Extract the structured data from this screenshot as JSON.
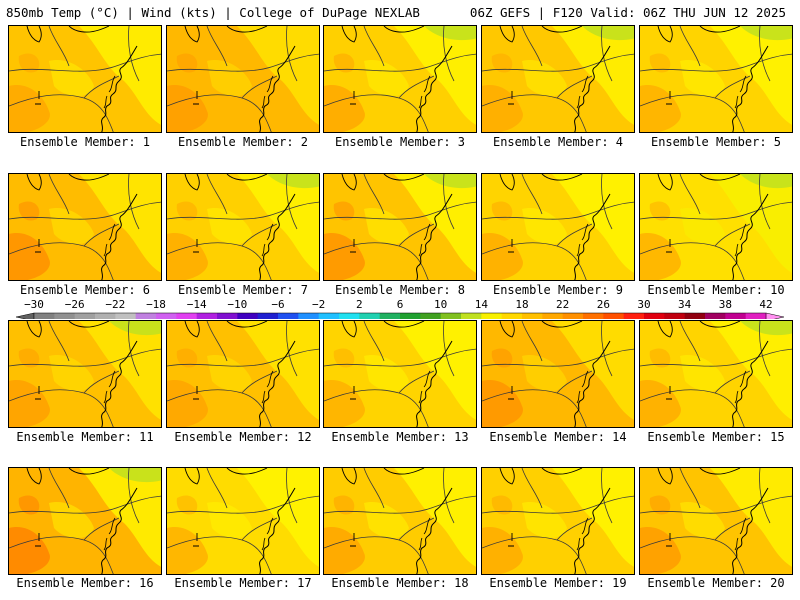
{
  "header": {
    "left_title": "850mb Temp (°C) | Wind (kts) | College of DuPage NEXLAB",
    "right_title": "06Z GEFS | F120 Valid: 06Z THU JUN 12 2025"
  },
  "colorbar": {
    "tick_labels": [
      "−30",
      "−26",
      "−22",
      "−18",
      "−14",
      "−10",
      "−6",
      "−2",
      "2",
      "6",
      "10",
      "14",
      "18",
      "22",
      "26",
      "30",
      "34",
      "38",
      "42"
    ],
    "min": -30,
    "max": 42,
    "step": 2,
    "colors": [
      "#606060",
      "#707070",
      "#808080",
      "#909090",
      "#a0a0a0",
      "#b0b0b0",
      "#c0c0c0",
      "#c080e0",
      "#d060f0",
      "#e040f0",
      "#b020e0",
      "#8010d0",
      "#4000c0",
      "#2020d0",
      "#2050f0",
      "#2090ff",
      "#20c0ff",
      "#20e0f0",
      "#20d0b0",
      "#20b060",
      "#20a030",
      "#40a020",
      "#80c020",
      "#c0e020",
      "#f8f000",
      "#ffd800",
      "#ffc000",
      "#ffa800",
      "#ff9000",
      "#ff7000",
      "#ff5000",
      "#ff2010",
      "#e00010",
      "#c00010",
      "#900010",
      "#a00060",
      "#c00090",
      "#e020c0",
      "#f060e0",
      "#ff90f0"
    ]
  },
  "panels": [
    {
      "label": "Ensemble Member: 1",
      "tint": "#ffc400",
      "warm": "#ffa800",
      "cool": "#fff000",
      "green": false
    },
    {
      "label": "Ensemble Member: 2",
      "tint": "#ffb800",
      "warm": "#ff9c00",
      "cool": "#ffe000",
      "green": false
    },
    {
      "label": "Ensemble Member: 3",
      "tint": "#ffd000",
      "warm": "#ffa800",
      "cool": "#fff200",
      "green": true
    },
    {
      "label": "Ensemble Member: 4",
      "tint": "#ffc800",
      "warm": "#ffac00",
      "cool": "#fff000",
      "green": true
    },
    {
      "label": "Ensemble Member: 5",
      "tint": "#ffd400",
      "warm": "#ffb000",
      "cool": "#fff400",
      "green": true
    },
    {
      "label": "Ensemble Member: 6",
      "tint": "#ffbc00",
      "warm": "#ff9000",
      "cool": "#ffe800",
      "green": false
    },
    {
      "label": "Ensemble Member: 7",
      "tint": "#ffd000",
      "warm": "#ffac00",
      "cool": "#fff200",
      "green": true
    },
    {
      "label": "Ensemble Member: 8",
      "tint": "#ffc400",
      "warm": "#ff9400",
      "cool": "#fff400",
      "green": true
    },
    {
      "label": "Ensemble Member: 9",
      "tint": "#ffd400",
      "warm": "#ffac00",
      "cool": "#fff400",
      "green": false
    },
    {
      "label": "Ensemble Member: 10",
      "tint": "#ffe000",
      "warm": "#ffb000",
      "cool": "#f8f000",
      "green": true
    },
    {
      "label": "Ensemble Member: 11",
      "tint": "#ffc000",
      "warm": "#ffa000",
      "cool": "#ffe400",
      "green": true
    },
    {
      "label": "Ensemble Member: 12",
      "tint": "#ffc000",
      "warm": "#ffa400",
      "cool": "#ffe400",
      "green": false
    },
    {
      "label": "Ensemble Member: 13",
      "tint": "#ffd400",
      "warm": "#ffb000",
      "cool": "#fff400",
      "green": false
    },
    {
      "label": "Ensemble Member: 14",
      "tint": "#ffb800",
      "warm": "#ff9400",
      "cool": "#ffe000",
      "green": false
    },
    {
      "label": "Ensemble Member: 15",
      "tint": "#ffd400",
      "warm": "#ffac00",
      "cool": "#fff200",
      "green": true
    },
    {
      "label": "Ensemble Member: 16",
      "tint": "#ffb400",
      "warm": "#ff8400",
      "cool": "#fff000",
      "green": true
    },
    {
      "label": "Ensemble Member: 17",
      "tint": "#ffdc00",
      "warm": "#ffb000",
      "cool": "#fff400",
      "green": false
    },
    {
      "label": "Ensemble Member: 18",
      "tint": "#ffcc00",
      "warm": "#ffa400",
      "cool": "#fff400",
      "green": false
    },
    {
      "label": "Ensemble Member: 19",
      "tint": "#ffd000",
      "warm": "#ffac00",
      "cool": "#fff400",
      "green": false
    },
    {
      "label": "Ensemble Member: 20",
      "tint": "#ffc400",
      "warm": "#ff9c00",
      "cool": "#fff000",
      "green": false
    }
  ]
}
